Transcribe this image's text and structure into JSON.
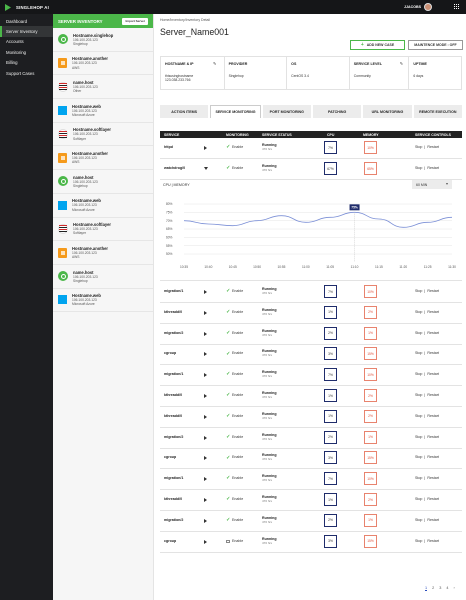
{
  "app": {
    "name": "SINGLEHOP AI",
    "user": "JJACOBS"
  },
  "sidebar": {
    "items": [
      {
        "label": "Dashboard",
        "active": false
      },
      {
        "label": "Server Inventory",
        "active": true
      },
      {
        "label": "Accounts",
        "active": false
      },
      {
        "label": "Monitoring",
        "active": false
      },
      {
        "label": "Billing",
        "active": false
      },
      {
        "label": "Support Cases",
        "active": false
      }
    ]
  },
  "inventory": {
    "title": "SERVER INVENTORY",
    "import_label": "Import Server",
    "servers": [
      {
        "name": "Hostname.singlehop",
        "ip": "106.100.203.123",
        "provider": "Singlehop",
        "icon": "singlehop-icon"
      },
      {
        "name": "Hostname.another",
        "ip": "106.100.203.123",
        "provider": "AWS",
        "icon": "aws-icon"
      },
      {
        "name": "name.host",
        "ip": "106.100.203.123",
        "provider": "Other",
        "icon": "other-host-icon"
      },
      {
        "name": "Hostname.web",
        "ip": "106.100.203.123",
        "provider": "Microsoft Azure",
        "icon": "windows-icon"
      },
      {
        "name": "Hostname.softlayer",
        "ip": "106.100.203.123",
        "provider": "Softlayer",
        "icon": "softlayer-icon"
      },
      {
        "name": "Hostname.another",
        "ip": "106.100.203.123",
        "provider": "AWS",
        "icon": "aws-icon"
      },
      {
        "name": "name.host",
        "ip": "106.100.203.123",
        "provider": "Singlehop",
        "icon": "singlehop-icon"
      },
      {
        "name": "Hostname.web",
        "ip": "106.100.203.123",
        "provider": "Microsoft Azure",
        "icon": "windows-icon"
      },
      {
        "name": "Hostname.softlayer",
        "ip": "106.100.203.123",
        "provider": "Softlayer",
        "icon": "softlayer-icon"
      },
      {
        "name": "Hostname.another",
        "ip": "106.100.203.123",
        "provider": "AWS",
        "icon": "aws-icon"
      },
      {
        "name": "name.host",
        "ip": "106.100.203.123",
        "provider": "Singlehop",
        "icon": "singlehop-icon"
      },
      {
        "name": "Hostname.web",
        "ip": "106.100.203.123",
        "provider": "Microsoft Azure",
        "icon": "windows-icon"
      }
    ]
  },
  "main": {
    "breadcrumb": "Home/Inventory/Inventory Detail",
    "title": "Server_Name001",
    "add_case_label": "ADD NEW CASE",
    "maintenance_label": "MAINTENCE MODE : OFF",
    "info": [
      {
        "label": "HOSTNAME & IP",
        "value": "thisusinghostname",
        "value2": "123.038.233.766"
      },
      {
        "label": "PROVIDER",
        "value": "Singlehop"
      },
      {
        "label": "OS",
        "value": "CentOS 3.4"
      },
      {
        "label": "SERVICE LEVEL",
        "value": "Community"
      },
      {
        "label": "UPTIME",
        "value": "6 days"
      }
    ],
    "tabs": [
      "ACTION ITEMS",
      "SERVICE MONITORING",
      "PORT MONITORING",
      "PATCHING",
      "URL MONITORING",
      "REMOTE EXECUTION"
    ],
    "table_headers": [
      "SERVICE",
      "MONITORING",
      "SERVICE STATUS",
      "CPU",
      "MEMORY",
      "SERVICE CONTROLS"
    ],
    "chart_header": "CPU  |  MEMORY",
    "range": "60 MIN",
    "rows": [
      {
        "service": "httpd",
        "monitoring": "Enable",
        "status": "Running",
        "uptime": "470 hrs",
        "cpu": "7%",
        "mem": "10%",
        "stop": "Stop",
        "restart": "Restart",
        "expanded": false,
        "checked": true
      },
      {
        "service": "watchdrog/0",
        "monitoring": "Enable",
        "status": "Running",
        "uptime": "470 hrs",
        "cpu": "67%",
        "mem": "65%",
        "stop": "Stop",
        "restart": "Restart",
        "expanded": true,
        "checked": true
      },
      {
        "service": "migration/1",
        "monitoring": "Enable",
        "status": "Running",
        "uptime": "470 hrs",
        "cpu": "7%",
        "mem": "10%",
        "stop": "Stop",
        "restart": "Restart",
        "expanded": false,
        "checked": true
      },
      {
        "service": "kthreadd/0",
        "monitoring": "Enable",
        "status": "Running",
        "uptime": "470 hrs",
        "cpu": "1%",
        "mem": "2%",
        "stop": "Stop",
        "restart": "Restart",
        "expanded": false,
        "checked": true
      },
      {
        "service": "migration/2",
        "monitoring": "Enable",
        "status": "Running",
        "uptime": "470 hrs",
        "cpu": "2%",
        "mem": "1%",
        "stop": "Stop",
        "restart": "Restart",
        "expanded": false,
        "checked": true
      },
      {
        "service": "cgroup",
        "monitoring": "Enable",
        "status": "Running",
        "uptime": "470 hrs",
        "cpu": "3%",
        "mem": "15%",
        "stop": "Stop",
        "restart": "Restart",
        "expanded": false,
        "checked": true
      },
      {
        "service": "migration/1",
        "monitoring": "Enable",
        "status": "Running",
        "uptime": "470 hrs",
        "cpu": "7%",
        "mem": "10%",
        "stop": "Stop",
        "restart": "Restart",
        "expanded": false,
        "checked": true
      },
      {
        "service": "kthreadd/0",
        "monitoring": "Enable",
        "status": "Running",
        "uptime": "470 hrs",
        "cpu": "1%",
        "mem": "2%",
        "stop": "Stop",
        "restart": "Restart",
        "expanded": false,
        "checked": true
      },
      {
        "service": "kthreadd/0",
        "monitoring": "Enable",
        "status": "Running",
        "uptime": "470 hrs",
        "cpu": "1%",
        "mem": "2%",
        "stop": "Stop",
        "restart": "Restart",
        "expanded": false,
        "checked": true
      },
      {
        "service": "migration/2",
        "monitoring": "Enable",
        "status": "Running",
        "uptime": "470 hrs",
        "cpu": "2%",
        "mem": "1%",
        "stop": "Stop",
        "restart": "Restart",
        "expanded": false,
        "checked": true
      },
      {
        "service": "cgroup",
        "monitoring": "Enable",
        "status": "Running",
        "uptime": "470 hrs",
        "cpu": "3%",
        "mem": "15%",
        "stop": "Stop",
        "restart": "Restart",
        "expanded": false,
        "checked": true
      },
      {
        "service": "migration/1",
        "monitoring": "Enable",
        "status": "Running",
        "uptime": "470 hrs",
        "cpu": "7%",
        "mem": "10%",
        "stop": "Stop",
        "restart": "Restart",
        "expanded": false,
        "checked": true
      },
      {
        "service": "kthreadd/0",
        "monitoring": "Enable",
        "status": "Running",
        "uptime": "470 hrs",
        "cpu": "1%",
        "mem": "2%",
        "stop": "Stop",
        "restart": "Restart",
        "expanded": false,
        "checked": true
      },
      {
        "service": "migration/2",
        "monitoring": "Enable",
        "status": "Running",
        "uptime": "470 hrs",
        "cpu": "2%",
        "mem": "1%",
        "stop": "Stop",
        "restart": "Restart",
        "expanded": false,
        "checked": true
      },
      {
        "service": "cgroup",
        "monitoring": "Enable",
        "status": "Running",
        "uptime": "470 hrs",
        "cpu": "3%",
        "mem": "15%",
        "stop": "Stop",
        "restart": "Restart",
        "expanded": false,
        "checked": false
      }
    ],
    "pages": [
      "1",
      "2",
      "3",
      "4"
    ],
    "current_page": "1"
  },
  "chart_data": {
    "type": "line",
    "x": [
      "10:35",
      "10:40",
      "10:45",
      "10:50",
      "10:55",
      "11:00",
      "11:05",
      "11:10",
      "11:15",
      "11:20",
      "11:25",
      "11:30"
    ],
    "series": [
      {
        "values": [
          70,
          68,
          67,
          70,
          73,
          69,
          72,
          75,
          71,
          66,
          69,
          72
        ]
      }
    ],
    "ylim": [
      50,
      80
    ],
    "yticks": [
      "80%",
      "75%",
      "70%",
      "65%",
      "60%",
      "55%",
      "50%"
    ],
    "tooltip": "75%",
    "line_color": "#7b8fd6",
    "grid": true
  }
}
